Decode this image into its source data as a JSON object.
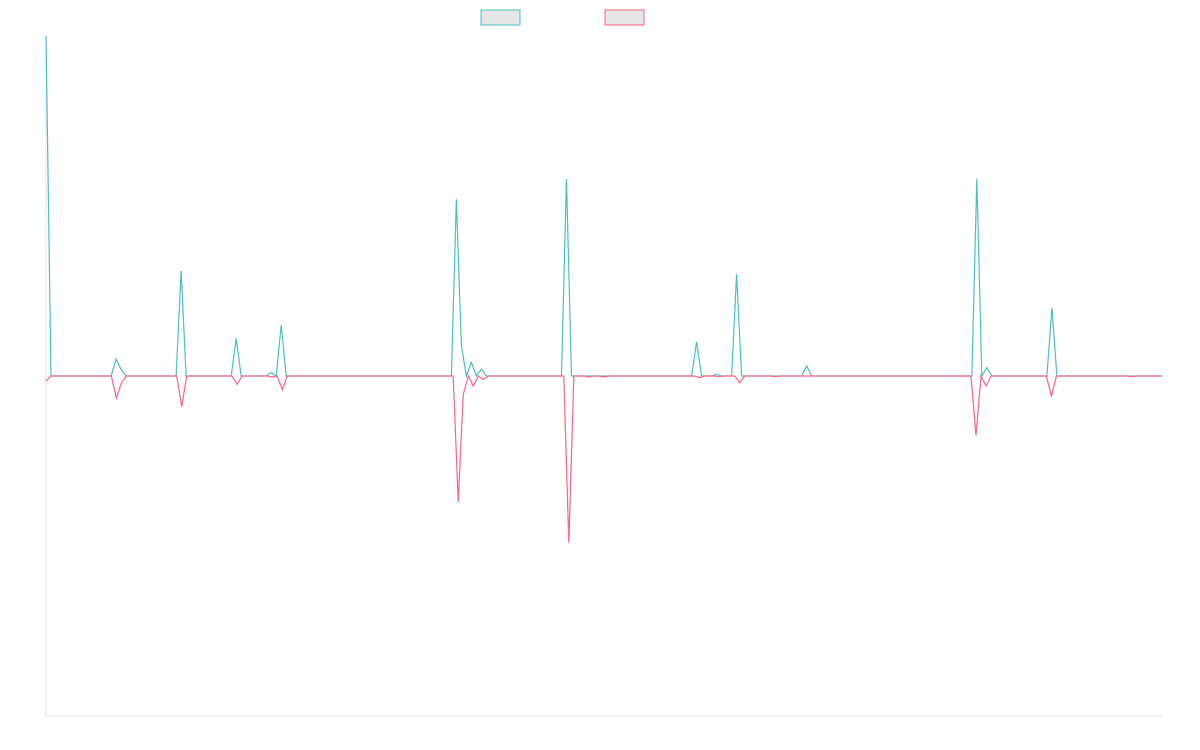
{
  "chart_data": {
    "type": "line",
    "title": "",
    "xlabel": "",
    "ylabel": "",
    "ylim": [
      -100,
      100
    ],
    "legend_position": "top-center",
    "grid": false,
    "colors": {
      "positive": "#4bc0c0",
      "negative": "#ff6384",
      "legend_fill": "#e6e6e6",
      "axis": "#e6e6e6"
    },
    "series": [
      {
        "values": [
          100,
          0,
          0,
          0,
          0,
          0,
          0,
          0,
          0,
          0,
          0,
          0,
          0,
          0,
          5,
          2,
          0,
          0,
          0,
          0,
          0,
          0,
          0,
          0,
          0,
          0,
          0,
          31,
          0,
          0,
          0,
          0,
          0,
          0,
          0,
          0,
          0,
          0,
          11,
          0,
          0,
          0,
          0,
          0,
          0,
          1,
          0,
          15,
          0,
          0,
          0,
          0,
          0,
          0,
          0,
          0,
          0,
          0,
          0,
          0,
          0,
          0,
          0,
          0,
          0,
          0,
          0,
          0,
          0,
          0,
          0,
          0,
          0,
          0,
          0,
          0,
          0,
          0,
          0,
          0,
          0,
          0,
          52,
          9,
          0,
          4,
          0,
          2,
          0,
          0,
          0,
          0,
          0,
          0,
          0,
          0,
          0,
          0,
          0,
          0,
          0,
          0,
          0,
          0,
          58,
          0,
          0,
          0,
          0,
          0,
          0,
          0,
          0,
          0,
          0,
          0,
          0,
          0,
          0,
          0,
          0,
          0,
          0,
          0,
          0,
          0,
          0,
          0,
          0,
          0,
          10,
          0,
          0,
          0,
          0.5,
          0,
          0,
          0,
          30,
          0,
          0,
          0,
          0,
          0,
          0,
          0,
          0,
          0,
          0,
          0,
          0,
          0,
          3,
          0,
          0,
          0,
          0,
          0,
          0,
          0,
          0,
          0,
          0,
          0,
          0,
          0,
          0,
          0,
          0,
          0,
          0,
          0,
          0,
          0,
          0,
          0,
          0,
          0,
          0,
          0,
          0,
          0,
          0,
          0,
          0,
          0,
          58,
          0,
          2.5,
          0,
          0,
          0,
          0,
          0,
          0,
          0,
          0,
          0,
          0,
          0,
          0,
          20,
          0,
          0,
          0,
          0,
          0,
          0,
          0,
          0,
          0,
          0,
          0,
          0,
          0,
          0,
          0,
          0,
          0,
          0,
          0,
          0,
          0,
          0
        ]
      },
      {
        "values": [
          -1.5,
          0,
          0,
          0,
          0,
          0,
          0,
          0,
          0,
          0,
          0,
          0,
          0,
          0,
          -6.5,
          -2,
          0,
          0,
          0,
          0,
          0,
          0,
          0,
          0,
          0,
          0,
          0,
          -9,
          0,
          0,
          0,
          0,
          0,
          0,
          0,
          0,
          0,
          0,
          -2.5,
          0,
          0,
          0,
          0,
          0,
          0,
          -0.3,
          0,
          -4,
          0,
          0,
          0,
          0,
          0,
          0,
          0,
          0,
          0,
          0,
          0,
          0,
          0,
          0,
          0,
          0,
          0,
          0,
          0,
          0,
          0,
          0,
          0,
          0,
          0,
          0,
          0,
          0,
          0,
          0,
          0,
          0,
          0,
          0,
          -37,
          -5.5,
          0,
          -3,
          0,
          -1,
          0,
          0,
          0,
          0,
          0,
          0,
          0,
          0,
          0,
          0,
          0,
          0,
          0,
          0,
          0,
          0,
          -49,
          0,
          0,
          0,
          -0.3,
          0,
          0,
          -0.3,
          0,
          0,
          0,
          0,
          0,
          0,
          0,
          0,
          0,
          0,
          0,
          0,
          0,
          0,
          0,
          0,
          0,
          0,
          -0.5,
          0,
          0,
          0,
          -0.2,
          0,
          0,
          0,
          -2,
          0,
          0,
          0,
          0,
          0,
          0,
          -0.2,
          0,
          0,
          0,
          0,
          0,
          0,
          0,
          0,
          0,
          0,
          0,
          0,
          0,
          0,
          0,
          0,
          0,
          0,
          0,
          0,
          0,
          0,
          0,
          0,
          0,
          0,
          0,
          0,
          0,
          0,
          0,
          0,
          0,
          0,
          0,
          0,
          0,
          0,
          0,
          -17.5,
          0,
          -3,
          0,
          0,
          0,
          0,
          0,
          0,
          0,
          0,
          0,
          0,
          0,
          0,
          -6,
          0,
          0,
          0,
          0,
          0,
          0,
          0,
          0,
          0,
          0,
          0,
          0,
          0,
          0,
          0,
          -0.2,
          0,
          0,
          0,
          0,
          0,
          0
        ]
      }
    ]
  }
}
